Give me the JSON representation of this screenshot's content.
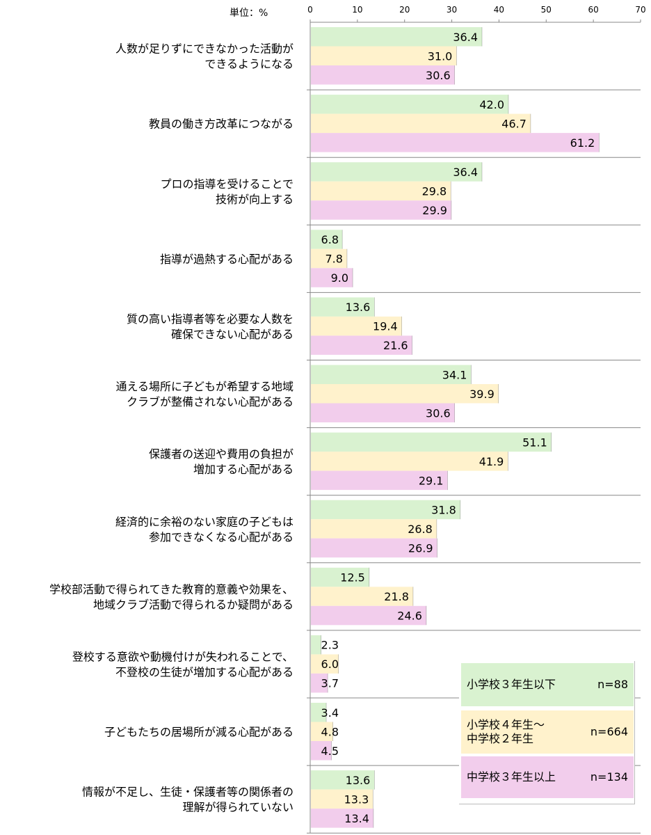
{
  "chart_data": {
    "type": "bar",
    "orientation": "horizontal",
    "unit_label": "単位：%",
    "xlim": [
      0,
      70
    ],
    "xticks": [
      0,
      10,
      20,
      30,
      40,
      50,
      60,
      70
    ],
    "grid": false,
    "legend_position": "bottom-right",
    "categories": [
      "人数が足りずにできなかった活動が\nできるようになる",
      "教員の働き方改革につながる",
      "プロの指導を受けることで\n技術が向上する",
      "指導が過熱する心配がある",
      "質の高い指導者等を必要な人数を\n確保できない心配がある",
      "通える場所に子どもが希望する地域\nクラブが整備されない心配がある",
      "保護者の送迎や費用の負担が\n増加する心配がある",
      "経済的に余裕のない家庭の子どもは\n参加できなくなる心配がある",
      "学校部活動で得られてきた教育的意義や効果を、\n地域クラブ活動で得られるか疑問がある",
      "登校する意欲や動機付けが失われることで、\n不登校の生徒が増加する心配がある",
      "子どもたちの居場所が減る心配がある",
      "情報が不足し、生徒・保護者等の関係者の\n理解が得られていない"
    ],
    "series": [
      {
        "name": "小学校３年生以下",
        "n_label": "n=88",
        "color": "#d9f2d0",
        "values": [
          36.4,
          42.0,
          36.4,
          6.8,
          13.6,
          34.1,
          51.1,
          31.8,
          12.5,
          2.3,
          3.4,
          13.6
        ]
      },
      {
        "name": "小学校４年生～\n中学校２年生",
        "n_label": "n=664",
        "color": "#fff2cc",
        "values": [
          31.0,
          46.7,
          29.8,
          7.8,
          19.4,
          39.9,
          41.9,
          26.8,
          21.8,
          6.0,
          4.8,
          13.3
        ]
      },
      {
        "name": "中学校３年生以上",
        "n_label": "n=134",
        "color": "#f2cdec",
        "values": [
          30.6,
          61.2,
          29.9,
          9.0,
          21.6,
          30.6,
          29.1,
          26.9,
          24.6,
          3.7,
          4.5,
          13.4
        ]
      }
    ]
  }
}
